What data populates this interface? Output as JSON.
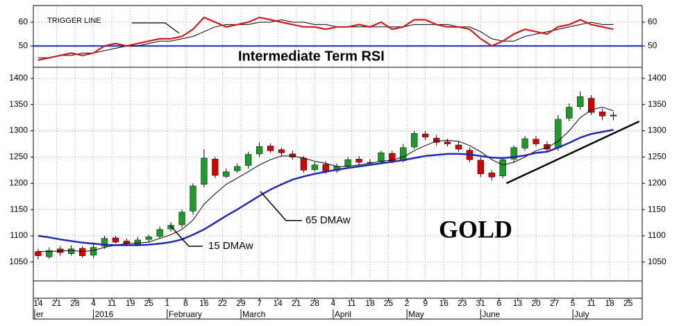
{
  "chart_data": {
    "type": "candlestick",
    "title": "GOLD",
    "x": [
      0,
      3,
      6,
      9,
      12,
      15,
      18,
      21,
      24,
      27,
      30,
      33,
      36,
      39,
      42,
      45,
      48,
      51,
      54,
      57,
      60,
      63,
      66,
      69,
      72,
      75,
      78,
      81,
      84,
      87,
      90,
      93,
      96,
      99,
      102,
      105,
      108,
      111,
      114,
      117,
      120,
      123,
      126,
      129,
      132,
      135,
      138,
      141,
      144,
      147,
      150,
      153,
      156
    ],
    "xlim": [
      -1.3,
      163.8
    ],
    "xticks": [
      {
        "value": 0,
        "label": "14"
      },
      {
        "value": 5,
        "label": "21"
      },
      {
        "value": 10,
        "label": "28"
      },
      {
        "value": 15,
        "label": "4"
      },
      {
        "value": 20,
        "label": "11"
      },
      {
        "value": 25,
        "label": "19"
      },
      {
        "value": 30,
        "label": "25"
      },
      {
        "value": 35,
        "label": "1"
      },
      {
        "value": 40,
        "label": "8"
      },
      {
        "value": 45,
        "label": "16"
      },
      {
        "value": 50,
        "label": "22"
      },
      {
        "value": 55,
        "label": "29"
      },
      {
        "value": 60,
        "label": "7"
      },
      {
        "value": 65,
        "label": "14"
      },
      {
        "value": 70,
        "label": "21"
      },
      {
        "value": 75,
        "label": "28"
      },
      {
        "value": 80,
        "label": "4"
      },
      {
        "value": 85,
        "label": "11"
      },
      {
        "value": 90,
        "label": "18"
      },
      {
        "value": 95,
        "label": "25"
      },
      {
        "value": 100,
        "label": "2"
      },
      {
        "value": 105,
        "label": "9"
      },
      {
        "value": 110,
        "label": "16"
      },
      {
        "value": 115,
        "label": "23"
      },
      {
        "value": 120,
        "label": "31"
      },
      {
        "value": 125,
        "label": "6"
      },
      {
        "value": 130,
        "label": "13"
      },
      {
        "value": 135,
        "label": "20"
      },
      {
        "value": 140,
        "label": "27"
      },
      {
        "value": 145,
        "label": "5"
      },
      {
        "value": 150,
        "label": "11"
      },
      {
        "value": 155,
        "label": "18"
      },
      {
        "value": 160,
        "label": "25"
      }
    ],
    "months": [
      {
        "value": -1.3,
        "label": "er"
      },
      {
        "value": 15,
        "label": "2016"
      },
      {
        "value": 35,
        "label": "February"
      },
      {
        "value": 55,
        "label": "March"
      },
      {
        "value": 80,
        "label": "April"
      },
      {
        "value": 100,
        "label": "May"
      },
      {
        "value": 120,
        "label": "June"
      },
      {
        "value": 145,
        "label": "July"
      }
    ],
    "grid": true,
    "open": [
      1070,
      1060,
      1075,
      1066,
      1076,
      1063,
      1080,
      1096,
      1090,
      1084,
      1093,
      1099,
      1113,
      1121,
      1147,
      1198,
      1246,
      1213,
      1224,
      1234,
      1256,
      1271,
      1264,
      1256,
      1248,
      1226,
      1236,
      1224,
      1233,
      1246,
      1239,
      1241,
      1257,
      1243,
      1269,
      1294,
      1286,
      1279,
      1273,
      1263,
      1244,
      1220,
      1214,
      1246,
      1267,
      1284,
      1274,
      1268,
      1324,
      1346,
      1362,
      1336,
      1330
    ],
    "high": [
      1075,
      1078,
      1080,
      1082,
      1080,
      1085,
      1100,
      1100,
      1095,
      1098,
      1102,
      1118,
      1126,
      1150,
      1200,
      1265,
      1250,
      1228,
      1238,
      1260,
      1278,
      1276,
      1268,
      1262,
      1252,
      1240,
      1242,
      1238,
      1250,
      1252,
      1246,
      1262,
      1262,
      1275,
      1300,
      1300,
      1292,
      1285,
      1280,
      1268,
      1250,
      1225,
      1250,
      1272,
      1290,
      1290,
      1280,
      1330,
      1352,
      1375,
      1368,
      1342,
      1336
    ],
    "low": [
      1055,
      1056,
      1062,
      1062,
      1058,
      1058,
      1075,
      1085,
      1080,
      1080,
      1088,
      1095,
      1108,
      1115,
      1140,
      1192,
      1210,
      1210,
      1220,
      1228,
      1250,
      1258,
      1252,
      1245,
      1220,
      1222,
      1218,
      1220,
      1228,
      1235,
      1234,
      1238,
      1238,
      1240,
      1265,
      1282,
      1272,
      1270,
      1260,
      1240,
      1212,
      1205,
      1210,
      1240,
      1262,
      1270,
      1260,
      1262,
      1318,
      1340,
      1330,
      1320,
      1320
    ],
    "close": [
      1062,
      1072,
      1068,
      1075,
      1062,
      1078,
      1095,
      1088,
      1085,
      1092,
      1098,
      1112,
      1120,
      1145,
      1195,
      1248,
      1215,
      1222,
      1232,
      1255,
      1270,
      1262,
      1258,
      1250,
      1225,
      1235,
      1222,
      1232,
      1245,
      1240,
      1240,
      1258,
      1242,
      1268,
      1295,
      1288,
      1278,
      1275,
      1265,
      1245,
      1218,
      1212,
      1245,
      1268,
      1285,
      1275,
      1265,
      1322,
      1345,
      1365,
      1335,
      1328,
      1328
    ],
    "up_color": "#1f9a2a",
    "down_color": "#d40000",
    "ylim": [
      1014,
      1421
    ],
    "yticks": [
      1050,
      1100,
      1150,
      1200,
      1250,
      1300,
      1350,
      1400
    ],
    "series": [
      {
        "name": "15 DMAw",
        "color": "#000000",
        "values": [
          1070,
          1070,
          1071,
          1072,
          1070,
          1072,
          1078,
          1082,
          1085,
          1086,
          1088,
          1095,
          1102,
          1112,
          1130,
          1160,
          1180,
          1198,
          1210,
          1222,
          1235,
          1245,
          1252,
          1252,
          1248,
          1242,
          1238,
          1232,
          1232,
          1235,
          1238,
          1242,
          1244,
          1250,
          1262,
          1272,
          1280,
          1282,
          1280,
          1272,
          1260,
          1245,
          1235,
          1240,
          1250,
          1262,
          1268,
          1280,
          1300,
          1325,
          1340,
          1345,
          1338
        ]
      },
      {
        "name": "65 DMAw",
        "color": "#1c28b4",
        "values": [
          1100,
          1097,
          1093,
          1090,
          1087,
          1085,
          1083,
          1082,
          1082,
          1082,
          1083,
          1085,
          1088,
          1093,
          1102,
          1112,
          1125,
          1138,
          1150,
          1163,
          1176,
          1188,
          1198,
          1207,
          1213,
          1218,
          1222,
          1226,
          1229,
          1232,
          1235,
          1238,
          1241,
          1244,
          1248,
          1252,
          1254,
          1256,
          1256,
          1255,
          1252,
          1249,
          1248,
          1250,
          1253,
          1258,
          1260,
          1268,
          1277,
          1287,
          1294,
          1298,
          1302
        ]
      }
    ],
    "trendline": {
      "x": [
        127,
        163
      ],
      "values": [
        1200,
        1318
      ],
      "color": "#000000"
    },
    "rsi": {
      "title": "Intermediate Term RSI",
      "ylim": [
        41,
        67
      ],
      "yticks": [
        50,
        60
      ],
      "reference": 50,
      "reference_color": "#1c28b4",
      "series": [
        {
          "color": "#d01818",
          "values": [
            44,
            45,
            46,
            47,
            46,
            47,
            50,
            51,
            50,
            51,
            52,
            53,
            53,
            54,
            57,
            62,
            60,
            58,
            59,
            60,
            62,
            61,
            60,
            59,
            58,
            58,
            57,
            58,
            58,
            59,
            58,
            60,
            57,
            58,
            61,
            61,
            59,
            58,
            58,
            57,
            53,
            50,
            52,
            55,
            57,
            56,
            55,
            58,
            59,
            61,
            59,
            58,
            57
          ]
        },
        {
          "name": "TRIGGER LINE",
          "color": "#000000",
          "values": [
            45,
            45,
            46,
            46,
            47,
            47,
            48,
            49,
            50,
            50,
            51,
            52,
            52,
            53,
            54,
            56,
            58,
            59,
            59,
            59,
            60,
            60,
            61,
            60,
            60,
            59,
            59,
            58,
            58,
            58,
            58,
            58,
            58,
            58,
            59,
            59,
            59,
            59,
            58,
            58,
            56,
            53,
            52,
            52,
            54,
            55,
            56,
            57,
            58,
            59,
            60,
            59,
            59
          ]
        }
      ]
    }
  }
}
